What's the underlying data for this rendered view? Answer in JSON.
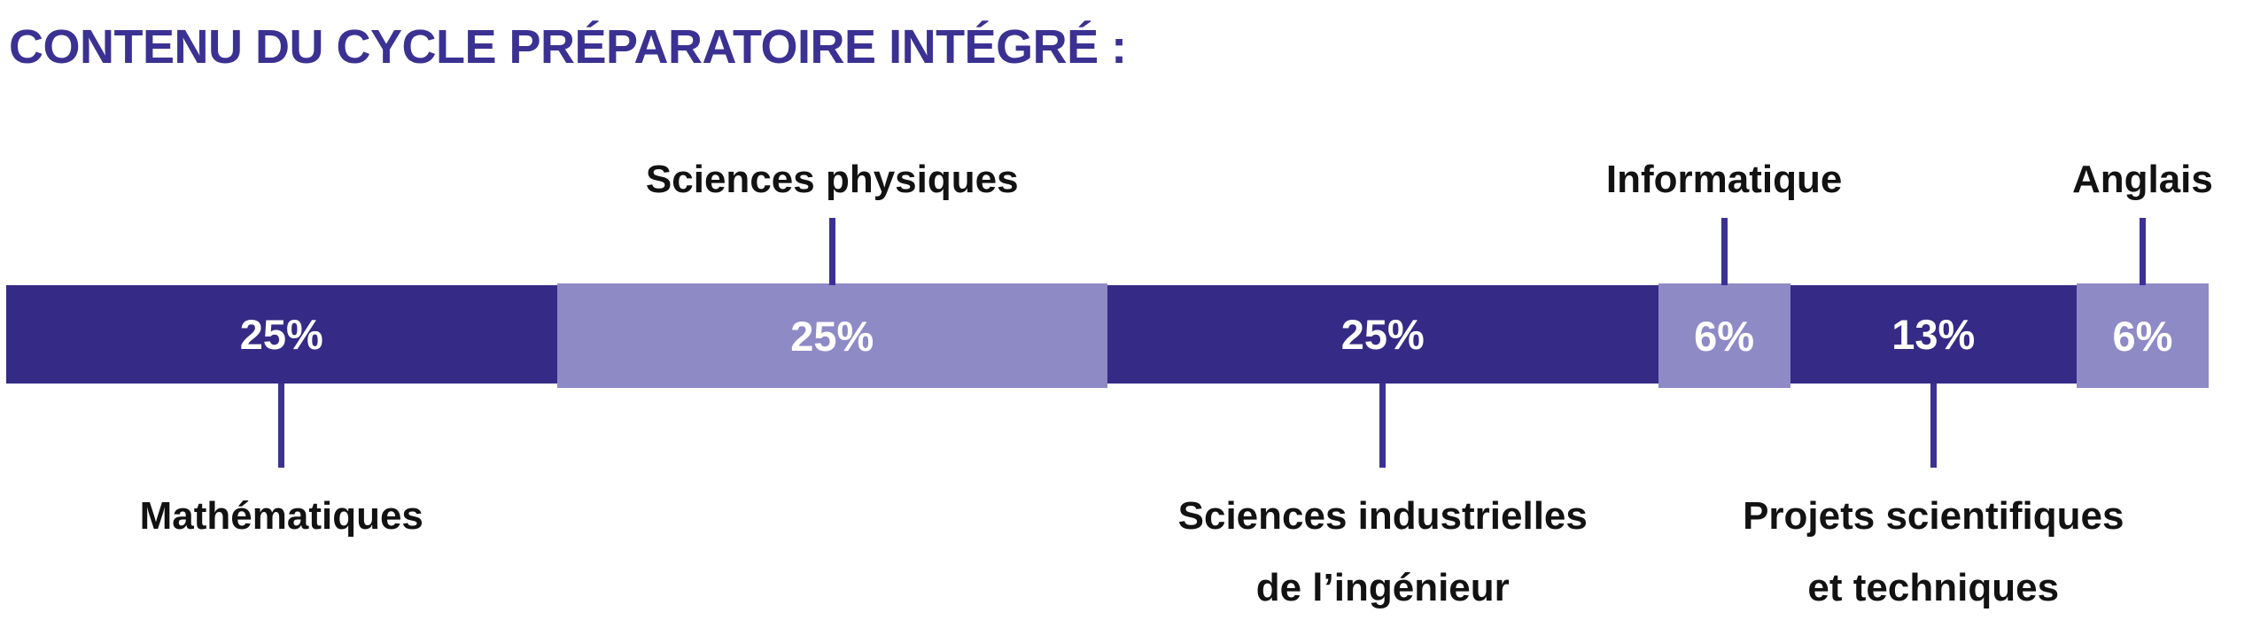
{
  "page": {
    "background": "#ffffff"
  },
  "title": {
    "text": "CONTENU DU CYCLE PRÉPARATOIRE INTÉGRÉ :",
    "color": "#3b3192"
  },
  "chart_data": {
    "type": "bar",
    "variant": "horizontal-stacked-percentage",
    "title": "CONTENU DU CYCLE PRÉPARATOIRE INTÉGRÉ :",
    "total": 100,
    "legend": "none",
    "axes": "none",
    "grid": "off",
    "colors": {
      "dark_purple": "#352a85",
      "light_purple": "#8e8ac6",
      "connector": "#3b3192",
      "category_text": "#121212",
      "value_text": "#ffffff",
      "title_text": "#3b3192"
    },
    "categories": [
      "Mathématiques",
      "Sciences physiques",
      "Sciences industrielles de l’ingénieur",
      "Informatique",
      "Projets scientifiques et techniques",
      "Anglais"
    ],
    "values": [
      25,
      25,
      25,
      6,
      13,
      6
    ],
    "segments": [
      {
        "category": "Mathématiques",
        "value": 25,
        "pct_label": "25%",
        "tone": "dark",
        "label_lines": [
          "Mathématiques"
        ],
        "label_position": "below"
      },
      {
        "category": "Sciences physiques",
        "value": 25,
        "pct_label": "25%",
        "tone": "light",
        "label_lines": [
          "Sciences physiques"
        ],
        "label_position": "above"
      },
      {
        "category": "Sciences industrielles de l’ingénieur",
        "value": 25,
        "pct_label": "25%",
        "tone": "dark",
        "label_lines": [
          "Sciences industrielles",
          "de l’ingénieur"
        ],
        "label_position": "below"
      },
      {
        "category": "Informatique",
        "value": 6,
        "pct_label": "6%",
        "tone": "light",
        "label_lines": [
          "Informatique"
        ],
        "label_position": "above"
      },
      {
        "category": "Projets scientifiques et techniques",
        "value": 13,
        "pct_label": "13%",
        "tone": "dark",
        "label_lines": [
          "Projets scientifiques",
          "et techniques"
        ],
        "label_position": "below"
      },
      {
        "category": "Anglais",
        "value": 6,
        "pct_label": "6%",
        "tone": "light",
        "label_lines": [
          "Anglais"
        ],
        "label_position": "above"
      }
    ]
  }
}
